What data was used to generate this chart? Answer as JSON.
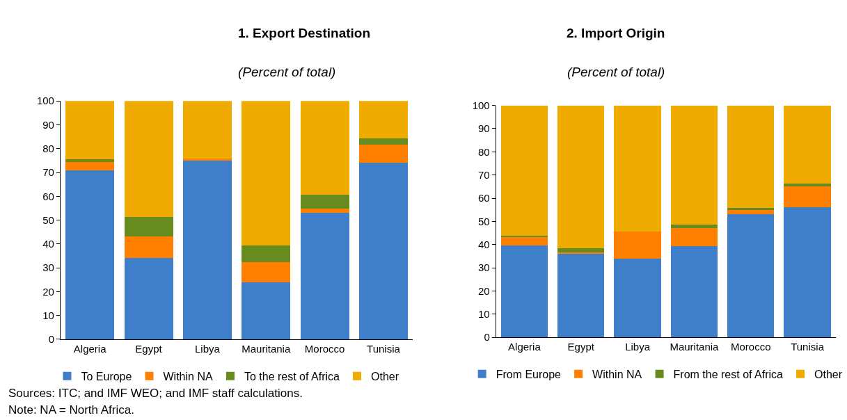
{
  "chart_data": [
    {
      "type": "bar",
      "title": "1. Export Destination",
      "subtitle": "(Percent of total)",
      "stacked": true,
      "categories": [
        "Algeria",
        "Egypt",
        "Libya",
        "Mauritania",
        "Morocco",
        "Tunisia"
      ],
      "series": [
        {
          "name": "To Europe",
          "color": "#3f7fca",
          "values": [
            71,
            34,
            75,
            24,
            53,
            74
          ]
        },
        {
          "name": "Within NA",
          "color": "#ff8000",
          "values": [
            3.5,
            9.2,
            0.8,
            8.5,
            1.7,
            7.7
          ]
        },
        {
          "name": "To the rest of Africa",
          "color": "#678b1f",
          "values": [
            1,
            8.1,
            0,
            6.8,
            5.9,
            2.5
          ]
        },
        {
          "name": "Other",
          "color": "#f0ab00",
          "values": [
            24.5,
            48.7,
            24.2,
            60.7,
            39.4,
            15.8
          ]
        }
      ],
      "ylim": [
        0,
        100
      ],
      "yticks": [
        0,
        10,
        20,
        30,
        40,
        50,
        60,
        70,
        80,
        90,
        100
      ],
      "legend": "bottom",
      "annotations": [
        "Sources: ITC; and IMF WEO; and IMF staff calculations.",
        "Note: NA = North Africa."
      ]
    },
    {
      "type": "bar",
      "title": "2. Import Origin",
      "subtitle": "(Percent of total)",
      "stacked": true,
      "categories": [
        "Algeria",
        "Egypt",
        "Libya",
        "Mauritania",
        "Morocco",
        "Tunisia"
      ],
      "series": [
        {
          "name": "From Europe",
          "color": "#3f7fca",
          "values": [
            39.5,
            36.3,
            33.8,
            39.2,
            53,
            56
          ]
        },
        {
          "name": "Within NA",
          "color": "#ff8000",
          "values": [
            4.1,
            0.3,
            11.9,
            8,
            2,
            9.1
          ]
        },
        {
          "name": "From the rest of Africa",
          "color": "#678b1f",
          "values": [
            0.3,
            1.8,
            0,
            1.4,
            0.8,
            1.1
          ]
        },
        {
          "name": "Other",
          "color": "#f0ab00",
          "values": [
            56.1,
            61.6,
            54.3,
            51.4,
            44.2,
            33.8
          ]
        }
      ],
      "ylim": [
        0,
        100
      ],
      "yticks": [
        0,
        10,
        20,
        30,
        40,
        50,
        60,
        70,
        80,
        90,
        100
      ],
      "legend": "bottom"
    }
  ]
}
